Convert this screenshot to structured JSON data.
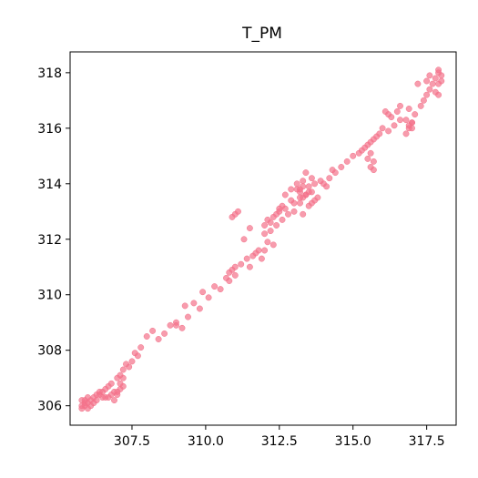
{
  "chart_data": {
    "type": "scatter",
    "title": "T_PM",
    "xlabel": "",
    "ylabel": "",
    "xlim": [
      305.4,
      318.5
    ],
    "ylim": [
      305.3,
      318.75
    ],
    "xticks": [
      "307.5",
      "310.0",
      "312.5",
      "315.0",
      "317.5"
    ],
    "xtick_values": [
      307.5,
      310.0,
      312.5,
      315.0,
      317.5
    ],
    "yticks": [
      "306",
      "308",
      "310",
      "312",
      "314",
      "316",
      "318"
    ],
    "ytick_values": [
      306,
      308,
      310,
      312,
      314,
      316,
      318
    ],
    "grid": false,
    "color": "#f4728a",
    "x": [
      305.8,
      305.9,
      306.0,
      306.1,
      306.2,
      305.8,
      305.9,
      306.0,
      306.1,
      305.9,
      306.0,
      305.8,
      306.2,
      306.3,
      306.4,
      306.5,
      306.6,
      306.7,
      306.8,
      306.9,
      307.0,
      307.1,
      306.3,
      306.5,
      306.7,
      306.9,
      307.0,
      307.1,
      307.2,
      307.1,
      307.0,
      307.2,
      306.4,
      306.6,
      306.8,
      307.2,
      307.3,
      307.4,
      307.5,
      307.6,
      307.7,
      307.8,
      308.0,
      308.2,
      308.4,
      308.6,
      308.8,
      309.0,
      309.2,
      309.4,
      309.6,
      309.8,
      309.0,
      309.3,
      309.9,
      310.1,
      310.3,
      310.5,
      310.7,
      310.8,
      310.9,
      311.0,
      310.8,
      311.0,
      311.2,
      311.4,
      311.6,
      311.8,
      311.5,
      311.3,
      310.9,
      311.0,
      311.1,
      312.0,
      312.2,
      312.3,
      312.4,
      312.5,
      312.6,
      312.2,
      312.4,
      312.6,
      312.8,
      313.0,
      313.2,
      312.7,
      312.9,
      313.1,
      313.3,
      313.5,
      313.7,
      313.9,
      313.0,
      313.2,
      313.4,
      313.6,
      313.8,
      313.3,
      313.5,
      313.7,
      313.1,
      313.3,
      312.5,
      312.7,
      312.9,
      313.6,
      313.4,
      313.2,
      314.0,
      314.2,
      314.4,
      314.6,
      314.8,
      315.0,
      315.2,
      314.3,
      314.1,
      315.3,
      315.5,
      315.7,
      315.9,
      315.6,
      315.4,
      315.8,
      315.6,
      315.7,
      315.5,
      315.6,
      315.7,
      316.2,
      316.4,
      316.6,
      316.2,
      316.3,
      316.1,
      316.0,
      316.5,
      316.6,
      316.9,
      317.0,
      317.1,
      316.8,
      316.9,
      317.0,
      317.3,
      317.4,
      317.5,
      317.6,
      317.7,
      317.8,
      317.9,
      317.9,
      318.0,
      317.8,
      317.9,
      318.0,
      317.9,
      317.5,
      317.6,
      317.2,
      316.8,
      316.9,
      317.0,
      312.0,
      312.1,
      311.7,
      311.9,
      312.0,
      311.5,
      312.1,
      312.3,
      313.5,
      313.6,
      313.4,
      313.2,
      313.3
    ],
    "y": [
      305.9,
      306.0,
      306.1,
      306.2,
      306.1,
      306.2,
      306.1,
      305.9,
      306.0,
      306.2,
      306.3,
      306.0,
      306.3,
      306.2,
      306.4,
      306.3,
      306.6,
      306.7,
      306.8,
      306.5,
      306.4,
      306.6,
      306.4,
      306.5,
      306.3,
      306.2,
      307.0,
      307.1,
      307.0,
      306.8,
      306.5,
      306.7,
      306.5,
      306.3,
      306.4,
      307.3,
      307.5,
      307.4,
      307.6,
      307.9,
      307.8,
      308.1,
      308.5,
      308.7,
      308.4,
      308.6,
      308.9,
      309.0,
      308.8,
      309.2,
      309.7,
      309.5,
      308.9,
      309.6,
      310.1,
      309.9,
      310.3,
      310.2,
      310.6,
      310.8,
      310.9,
      310.7,
      310.5,
      311.0,
      311.1,
      311.3,
      311.4,
      311.6,
      312.4,
      312.0,
      312.8,
      312.9,
      313.0,
      312.5,
      312.6,
      312.8,
      312.9,
      313.1,
      313.2,
      312.3,
      312.5,
      312.7,
      312.9,
      313.3,
      313.5,
      313.6,
      313.8,
      314.0,
      314.1,
      313.9,
      314.0,
      314.1,
      313.0,
      313.3,
      313.6,
      313.7,
      313.5,
      312.9,
      313.2,
      313.4,
      313.8,
      313.9,
      313.0,
      313.1,
      313.4,
      313.3,
      313.6,
      313.7,
      314.0,
      314.2,
      314.4,
      314.6,
      314.8,
      315.0,
      315.1,
      314.5,
      313.9,
      315.2,
      315.4,
      315.6,
      315.8,
      315.5,
      315.3,
      315.7,
      315.1,
      314.8,
      314.9,
      314.6,
      314.5,
      315.9,
      316.1,
      316.3,
      316.5,
      316.4,
      316.6,
      316.0,
      316.6,
      316.8,
      316.7,
      316.2,
      316.5,
      316.3,
      316.1,
      316.0,
      316.8,
      317.0,
      317.2,
      317.4,
      317.6,
      317.8,
      318.0,
      317.6,
      317.7,
      317.3,
      317.2,
      317.9,
      318.1,
      317.7,
      317.9,
      317.6,
      315.8,
      316.0,
      316.2,
      312.2,
      311.9,
      311.5,
      311.3,
      311.6,
      311.0,
      312.7,
      311.8,
      313.7,
      314.2,
      314.4,
      313.8,
      313.5
    ]
  }
}
